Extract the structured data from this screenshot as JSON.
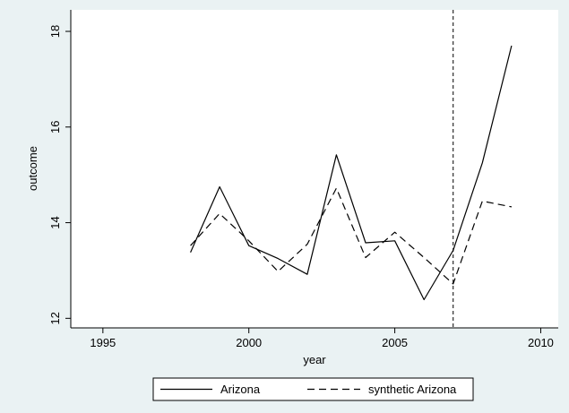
{
  "chart_data": {
    "type": "line",
    "xlabel": "year",
    "ylabel": "outcome",
    "xlim": [
      1995,
      2010
    ],
    "ylim": [
      12,
      18
    ],
    "x_ticks": [
      1995,
      2000,
      2005,
      2010
    ],
    "y_ticks": [
      12,
      14,
      16,
      18
    ],
    "grid": false,
    "legend_position": "bottom",
    "treatment_line": 2007,
    "x": [
      1998,
      1999,
      2000,
      2001,
      2002,
      2003,
      2004,
      2005,
      2006,
      2007,
      2008,
      2009
    ],
    "series": [
      {
        "name": "Arizona",
        "style": "solid",
        "values": [
          13.38,
          14.75,
          13.52,
          13.25,
          12.92,
          15.42,
          13.58,
          13.62,
          12.39,
          13.42,
          15.25,
          17.7
        ]
      },
      {
        "name": "synthetic Arizona",
        "style": "dashed",
        "values": [
          13.52,
          14.19,
          13.62,
          12.98,
          13.55,
          14.72,
          13.27,
          13.8,
          13.27,
          12.72,
          14.45,
          14.33
        ]
      }
    ],
    "colors": {
      "background": "#eaf2f3",
      "plot_background": "#ffffff",
      "line": "#000000"
    }
  }
}
